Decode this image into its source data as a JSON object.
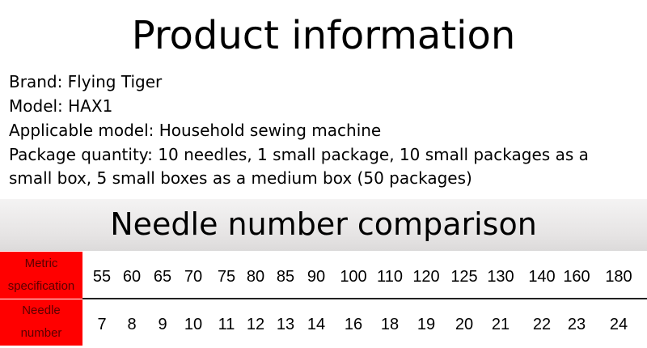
{
  "title": "Product information",
  "info": [
    "Brand: Flying Tiger",
    "Model: HAX1",
    "Applicable model: Household sewing machine",
    "Package quantity: 10 needles, 1 small package, 10 small packages as a",
    "small box, 5 small boxes as a medium box (50 packages)"
  ],
  "comparison_title": "Needle number comparison",
  "table": {
    "row_headers": [
      "Metric specification",
      "Needle number"
    ],
    "metric": [
      "55",
      "60",
      "65",
      "70",
      "75",
      "80",
      "85",
      "90",
      "100",
      "110",
      "120",
      "125",
      "130",
      "140",
      "160",
      "180"
    ],
    "needle": [
      "7",
      "8",
      "9",
      "10",
      "11",
      "12",
      "13",
      "14",
      "16",
      "18",
      "19",
      "20",
      "21",
      "22",
      "23",
      "24"
    ]
  },
  "colors": {
    "header_bg": "#ff0000",
    "band_bg": "#e6e4e4"
  }
}
